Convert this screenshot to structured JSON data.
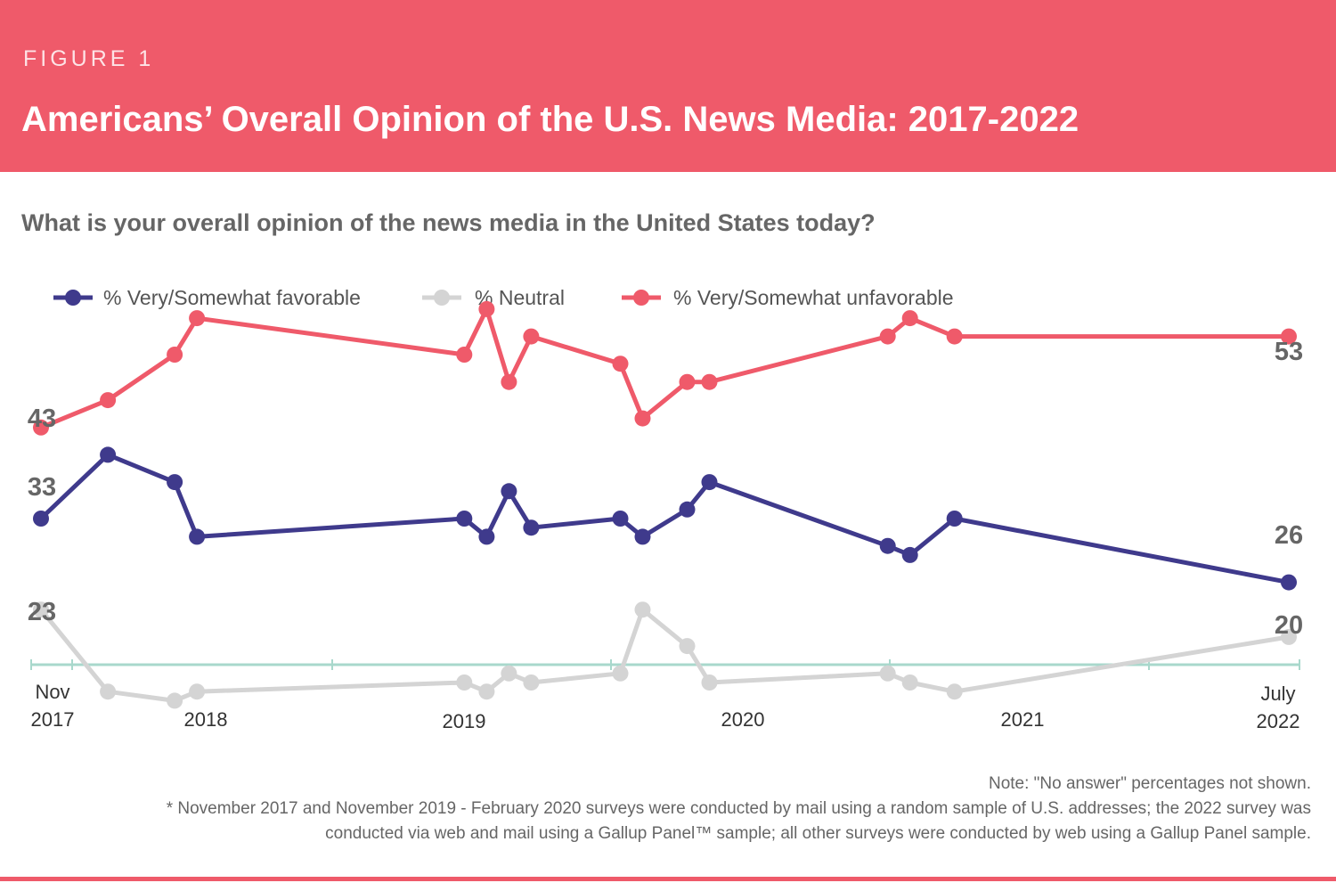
{
  "header": {
    "figure_label": "FIGURE 1",
    "title": "Americans’ Overall Opinion of the U.S. News Media: 2017-2022"
  },
  "question": "What is your overall opinion of the news media in the United States today?",
  "colors": {
    "header_bg": "#ef5a6a",
    "favorable": "#3f3a8c",
    "neutral": "#d4d4d4",
    "unfavorable": "#ef5a6a",
    "axis": "#a8d8cc"
  },
  "chart_data": {
    "type": "line",
    "x_unit": "months since Jan 2017",
    "x": [
      10,
      13,
      16,
      17,
      29,
      30,
      31,
      32,
      36,
      37,
      39,
      40,
      48,
      49,
      51,
      66
    ],
    "xlim": [
      10,
      66
    ],
    "ylim": [
      15,
      60
    ],
    "series": [
      {
        "name": "% Very/Somewhat favorable",
        "color": "#3f3a8c",
        "values": [
          33,
          40,
          37,
          31,
          33,
          31,
          36,
          32,
          33,
          31,
          34,
          37,
          30,
          29,
          33,
          26
        ]
      },
      {
        "name": "% Neutral",
        "color": "#d4d4d4",
        "values": [
          23,
          14,
          13,
          14,
          15,
          14,
          16,
          15,
          16,
          23,
          19,
          15,
          16,
          15,
          14,
          20
        ]
      },
      {
        "name": "% Very/Somewhat unfavorable",
        "color": "#ef5a6a",
        "values": [
          43,
          46,
          51,
          55,
          51,
          56,
          48,
          53,
          50,
          44,
          48,
          48,
          53,
          55,
          53,
          53
        ]
      }
    ],
    "start_labels": {
      "favorable": "33",
      "neutral": "23",
      "unfavorable": "43"
    },
    "end_labels": {
      "favorable": "26",
      "neutral": "20",
      "unfavorable": "53"
    },
    "x_ticks": [
      {
        "label": "Nov\n2017"
      },
      {
        "label": "2018"
      },
      {
        "label": "2019"
      },
      {
        "label": "2020"
      },
      {
        "label": "2021"
      },
      {
        "label": "July\n2022"
      }
    ]
  },
  "notes": {
    "line1": "Note: \"No answer\" percentages not shown.",
    "line2": "* November 2017 and November 2019 - February 2020 surveys were conducted by mail using a random sample of U.S. addresses; the 2022 survey was",
    "line3": "conducted via web and mail using a Gallup Panel™ sample; all other surveys were conducted by web using a Gallup Panel sample."
  }
}
